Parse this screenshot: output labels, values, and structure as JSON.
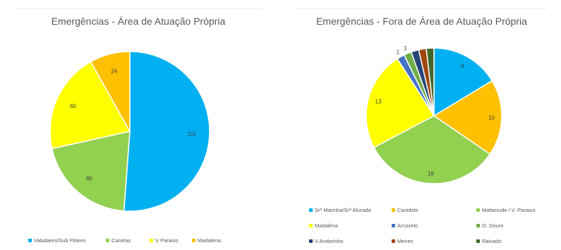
{
  "chart_data": [
    {
      "type": "pie",
      "title": "Emergências - Área de Atuação Própria",
      "legend_position": "bottom",
      "slices": [
        {
          "label": "Valadares/Sub Pilares",
          "value": 151,
          "display": "151",
          "color": "#00B0F0"
        },
        {
          "label": "Canelas",
          "value": 60,
          "display": "60",
          "color": "#92D050"
        },
        {
          "label": "V Paraiso",
          "value": 60,
          "display": "60",
          "color": "#FFFF00"
        },
        {
          "label": "Madalena",
          "value": 24,
          "display": "24",
          "color": "#FFC000"
        }
      ]
    },
    {
      "type": "pie",
      "title": "Emergências - Fora de Área de Atuação Própria",
      "legend_position": "bottom",
      "slices": [
        {
          "label": "Srª Marinha/Srª Afurada",
          "value": 9,
          "display": "9",
          "color": "#00B0F0"
        },
        {
          "label": "Canidelo",
          "value": 10,
          "display": "10",
          "color": "#FFC000"
        },
        {
          "label": "Mafamude / V. Paraiso",
          "value": 18,
          "display": "18",
          "color": "#92D050"
        },
        {
          "label": "Madalena",
          "value": 13,
          "display": "13",
          "color": "#FFFF00"
        },
        {
          "label": "Arcozelo",
          "value": 1,
          "display": "1",
          "color": "#4472C4"
        },
        {
          "label": "O. Douro",
          "value": 1,
          "display": "1",
          "color": "#70AD47"
        },
        {
          "label": "V.Andorinho",
          "value": 1,
          "display": "",
          "color": "#264478"
        },
        {
          "label": "Meires",
          "value": 1,
          "display": "",
          "color": "#9E480E"
        },
        {
          "label": "Raivado",
          "value": 1,
          "display": "",
          "color": "#43682B"
        }
      ]
    }
  ]
}
